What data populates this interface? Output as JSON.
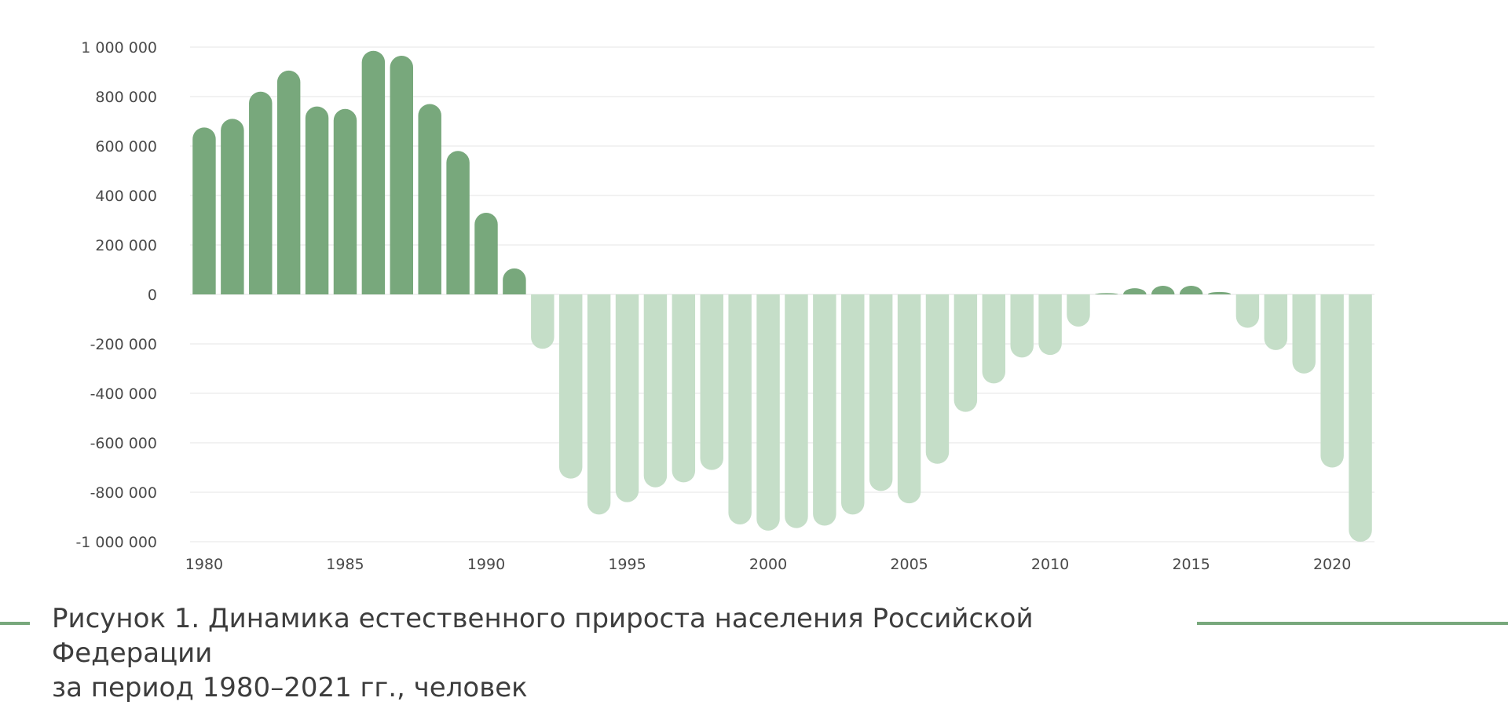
{
  "colors": {
    "positive_bar": "#78a87c",
    "negative_bar": "#c5dec8",
    "grid": "#e6e6e6",
    "tick_text": "#4a4a4a",
    "caption_text": "#3d3d3d",
    "caption_line": "#78a87c"
  },
  "chart_data": {
    "type": "bar",
    "title": "",
    "xlabel": "",
    "ylabel": "",
    "ylim": [
      -1000000,
      1000000
    ],
    "grid": true,
    "y_ticks": [
      1000000,
      800000,
      600000,
      400000,
      200000,
      0,
      -200000,
      -400000,
      -600000,
      -800000,
      -1000000
    ],
    "y_tick_labels": [
      "1 000 000",
      "800 000",
      "600 000",
      "400 000",
      "200 000",
      "0",
      "-200 000",
      "-400 000",
      "-600 000",
      "-800 000",
      "-1 000 000"
    ],
    "x_tick_labels": [
      "1980",
      "1985",
      "1990",
      "1995",
      "2000",
      "2005",
      "2010",
      "2015",
      "2020"
    ],
    "categories": [
      "1980",
      "1981",
      "1982",
      "1983",
      "1984",
      "1985",
      "1986",
      "1987",
      "1988",
      "1989",
      "1990",
      "1991",
      "1992",
      "1993",
      "1994",
      "1995",
      "1996",
      "1997",
      "1998",
      "1999",
      "2000",
      "2001",
      "2002",
      "2003",
      "2004",
      "2005",
      "2006",
      "2007",
      "2008",
      "2009",
      "2010",
      "2011",
      "2012",
      "2013",
      "2014",
      "2015",
      "2016",
      "2017",
      "2018",
      "2019",
      "2020",
      "2021"
    ],
    "values": [
      675000,
      710000,
      820000,
      905000,
      760000,
      750000,
      985000,
      965000,
      770000,
      580000,
      330000,
      105000,
      -220000,
      -745000,
      -890000,
      -840000,
      -780000,
      -760000,
      -710000,
      -930000,
      -955000,
      -945000,
      -935000,
      -890000,
      -795000,
      -845000,
      -685000,
      -475000,
      -360000,
      -255000,
      -245000,
      -130000,
      5000,
      25000,
      35000,
      35000,
      10000,
      -135000,
      -225000,
      -320000,
      -700000,
      -1000000
    ]
  },
  "caption": {
    "line1": "Рисунок 1. Динамика естественного прироста населения Российской Федерации",
    "line2": "за период 1980–2021 гг., человек"
  }
}
